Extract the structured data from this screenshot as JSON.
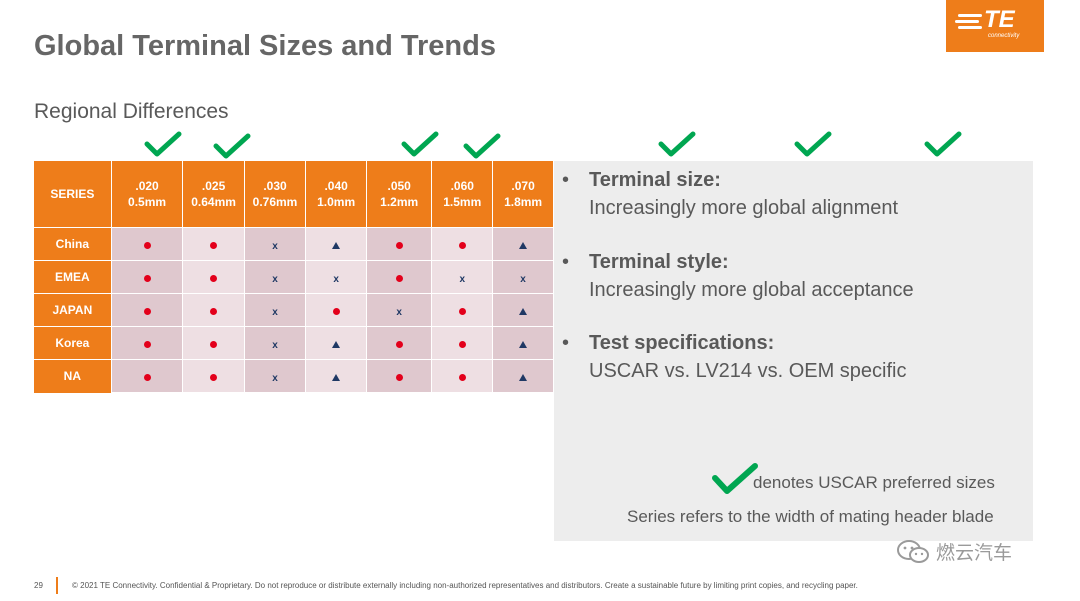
{
  "title": "Global Terminal Sizes and Trends",
  "subtitle": "Regional Differences",
  "logo": {
    "text": "TE",
    "sub": "connectivity"
  },
  "table": {
    "corner": "SERIES",
    "columns": [
      {
        "inch": ".020",
        "mm": "0.5mm"
      },
      {
        "inch": ".025",
        "mm": "0.64mm"
      },
      {
        "inch": ".030",
        "mm": "0.76mm"
      },
      {
        "inch": ".040",
        "mm": "1.0mm"
      },
      {
        "inch": ".050",
        "mm": "1.2mm"
      },
      {
        "inch": ".060",
        "mm": "1.5mm"
      },
      {
        "inch": ".070",
        "mm": "1.8mm"
      }
    ],
    "rows": [
      {
        "label": "China",
        "cells": [
          "dot",
          "dot",
          "x",
          "tri",
          "dot",
          "dot",
          "tri"
        ]
      },
      {
        "label": "EMEA",
        "cells": [
          "dot",
          "dot",
          "x",
          "x",
          "dot",
          "x",
          "x"
        ]
      },
      {
        "label": "JAPAN",
        "cells": [
          "dot",
          "dot",
          "x",
          "dot",
          "x",
          "dot",
          "tri"
        ]
      },
      {
        "label": "Korea",
        "cells": [
          "dot",
          "dot",
          "x",
          "tri",
          "dot",
          "dot",
          "tri"
        ]
      },
      {
        "label": "NA",
        "cells": [
          "dot",
          "dot",
          "x",
          "tri",
          "dot",
          "dot",
          "tri"
        ]
      }
    ],
    "checked_columns": [
      ".020",
      ".025",
      ".050",
      ".060"
    ],
    "symbols": {
      "dot": "red-dot",
      "x": "x-mark",
      "tri": "triangle"
    }
  },
  "bullets": [
    {
      "head": "Terminal size:",
      "sub": "Increasingly more global alignment"
    },
    {
      "head": "Terminal style:",
      "sub": "Increasingly more global acceptance"
    },
    {
      "head": "Test specifications:",
      "sub": "USCAR vs. LV214 vs. OEM specific"
    }
  ],
  "legend_check": "denotes USCAR preferred sizes",
  "legend_series": "Series refers to the width of mating header blade",
  "watermark": "燃云汽车",
  "footer": {
    "page": "29",
    "text": "© 2021 TE Connectivity. Confidential & Proprietary. Do not reproduce or distribute externally including non-authorized representatives and distributors. Create a sustainable future by limiting print copies, and recycling paper."
  },
  "colors": {
    "accent": "#ee7d1a",
    "check": "#00a651",
    "dot": "#e3001b",
    "mark": "#1f3864",
    "panel": "#ededed"
  },
  "icons": [
    "check-icon",
    "te-logo",
    "bullet-icon",
    "wechat-icon"
  ]
}
